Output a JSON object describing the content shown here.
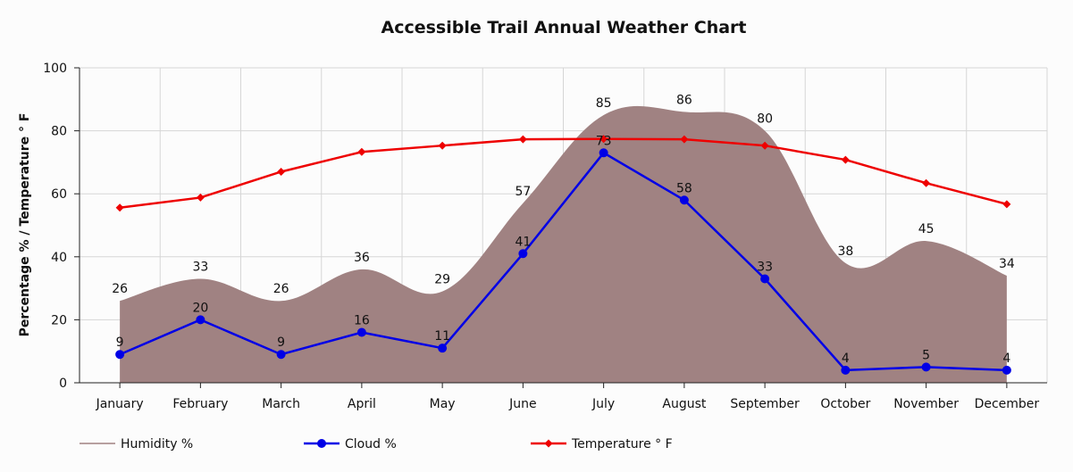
{
  "chart_data": {
    "type": "line",
    "title": "Accessible Trail Annual Weather Chart",
    "xlabel": "",
    "ylabel": "Percentage % / Temperature ° F",
    "ylim": [
      0,
      100
    ],
    "yticks": [
      "0",
      "20",
      "40",
      "60",
      "80",
      "100"
    ],
    "categories": [
      "January",
      "February",
      "March",
      "April",
      "May",
      "June",
      "July",
      "August",
      "September",
      "October",
      "November",
      "December"
    ],
    "grid": true,
    "legend_position": "bottom",
    "series": [
      {
        "name": "Humidity %",
        "kind": "area",
        "color": "#a08282",
        "values": [
          26,
          33,
          26,
          36,
          29,
          57,
          85,
          86,
          80,
          38,
          45,
          34
        ],
        "show_labels": true
      },
      {
        "name": "Cloud %",
        "kind": "line",
        "marker": "circle",
        "color": "#0000e6",
        "values": [
          9,
          20,
          9,
          16,
          11,
          41,
          73,
          58,
          33,
          4,
          5,
          4
        ],
        "show_labels": true
      },
      {
        "name": "Temperature ° F",
        "kind": "line",
        "marker": "diamond",
        "color": "#ee0000",
        "values": [
          55.6,
          58.8,
          67,
          73.3,
          75.3,
          77.3,
          77.4,
          77.3,
          75.3,
          70.8,
          63.4,
          56.7
        ],
        "show_labels": false
      }
    ]
  }
}
